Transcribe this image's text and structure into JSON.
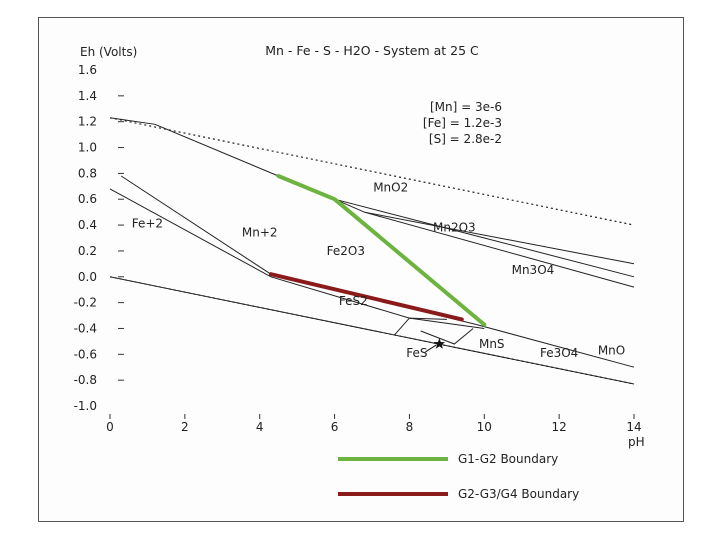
{
  "chart_data": {
    "type": "line",
    "title": "Mn - Fe - S - H2O - System at 25 C",
    "ylabel": "Eh (Volts)",
    "xlabel": "pH",
    "xlim": [
      0,
      14
    ],
    "ylim": [
      -1.0,
      1.6
    ],
    "x_ticks": [
      "0",
      "2",
      "4",
      "6",
      "8",
      "10",
      "12",
      "14"
    ],
    "y_ticks": [
      "1.6",
      "1.4",
      "1.2",
      "1.0",
      "0.8",
      "0.6",
      "0.4",
      "0.2",
      "0.0",
      "-0.2",
      "-0.4",
      "-0.6",
      "-0.8",
      "-1.0"
    ],
    "y_tick_values": [
      1.6,
      1.4,
      1.2,
      1.0,
      0.8,
      0.6,
      0.4,
      0.2,
      0.0,
      -0.2,
      -0.4,
      -0.6,
      -0.8,
      -1.0
    ],
    "conditions": [
      "[Mn] = 3e-6",
      "[Fe] = 1.2e-3",
      "[S] = 2.8e-2"
    ],
    "water_limits": [
      {
        "name": "upper",
        "points": [
          [
            0,
            1.23
          ],
          [
            14,
            0.4
          ]
        ]
      },
      {
        "name": "lower",
        "points": [
          [
            0,
            0.0
          ],
          [
            14,
            -0.83
          ]
        ]
      }
    ],
    "boundaries": [
      {
        "name": "b1",
        "points": [
          [
            0.0,
            1.23
          ],
          [
            1.2,
            1.18
          ],
          [
            4.5,
            0.78
          ],
          [
            6.0,
            0.6
          ],
          [
            10,
            0.3
          ],
          [
            14,
            0.0
          ]
        ]
      },
      {
        "name": "b2",
        "points": [
          [
            6.0,
            0.6
          ],
          [
            6.8,
            0.5
          ],
          [
            14,
            0.1
          ]
        ]
      },
      {
        "name": "b3",
        "points": [
          [
            6.8,
            0.5
          ],
          [
            14,
            -0.08
          ]
        ]
      },
      {
        "name": "b4",
        "points": [
          [
            0.3,
            0.78
          ],
          [
            4.3,
            0.02
          ]
        ]
      },
      {
        "name": "b5",
        "points": [
          [
            0.0,
            0.68
          ],
          [
            4.3,
            0.0
          ],
          [
            8.0,
            -0.32
          ],
          [
            10.0,
            -0.4
          ]
        ]
      },
      {
        "name": "b6",
        "points": [
          [
            4.3,
            0.02
          ],
          [
            9.8,
            -0.37
          ]
        ]
      },
      {
        "name": "b7",
        "points": [
          [
            9.8,
            -0.37
          ],
          [
            14,
            -0.7
          ]
        ]
      },
      {
        "name": "b8",
        "points": [
          [
            7.6,
            -0.45
          ],
          [
            8.0,
            -0.32
          ],
          [
            9.0,
            -0.33
          ]
        ]
      },
      {
        "name": "b9",
        "points": [
          [
            8.3,
            -0.42
          ],
          [
            9.2,
            -0.52
          ],
          [
            9.7,
            -0.4
          ]
        ]
      },
      {
        "name": "b10",
        "points": [
          [
            0,
            0.0
          ],
          [
            14,
            -0.83
          ]
        ]
      }
    ],
    "series": [
      {
        "name": "G1-G2 Boundary",
        "color": "#6db33f",
        "points": [
          [
            4.5,
            0.78
          ],
          [
            6.0,
            0.6
          ],
          [
            10.0,
            -0.37
          ]
        ]
      },
      {
        "name": "G2-G3/G4 Boundary",
        "color": "#8b1a1a",
        "points": [
          [
            4.3,
            0.02
          ],
          [
            9.4,
            -0.33
          ]
        ]
      }
    ],
    "field_labels": [
      {
        "text": "Fe+2",
        "x": 1.0,
        "y": 0.38
      },
      {
        "text": "Mn+2",
        "x": 4.0,
        "y": 0.31
      },
      {
        "text": "MnO2",
        "x": 7.5,
        "y": 0.66
      },
      {
        "text": "Mn2O3",
        "x": 9.2,
        "y": 0.35
      },
      {
        "text": "Fe2O3",
        "x": 6.3,
        "y": 0.17
      },
      {
        "text": "Mn3O4",
        "x": 11.3,
        "y": 0.02
      },
      {
        "text": "FeS2",
        "x": 6.5,
        "y": -0.22
      },
      {
        "text": "MnS",
        "x": 10.2,
        "y": -0.55
      },
      {
        "text": "FeS",
        "x": 8.2,
        "y": -0.62
      },
      {
        "text": "Fe3O4",
        "x": 12.0,
        "y": -0.62
      },
      {
        "text": "MnO",
        "x": 13.4,
        "y": -0.6
      }
    ],
    "marker": {
      "x": 8.8,
      "y": -0.52
    }
  },
  "legend": [
    {
      "label": "G1-G2 Boundary",
      "color": "#6db33f"
    },
    {
      "label": "G2-G3/G4 Boundary",
      "color": "#8b1a1a"
    }
  ]
}
